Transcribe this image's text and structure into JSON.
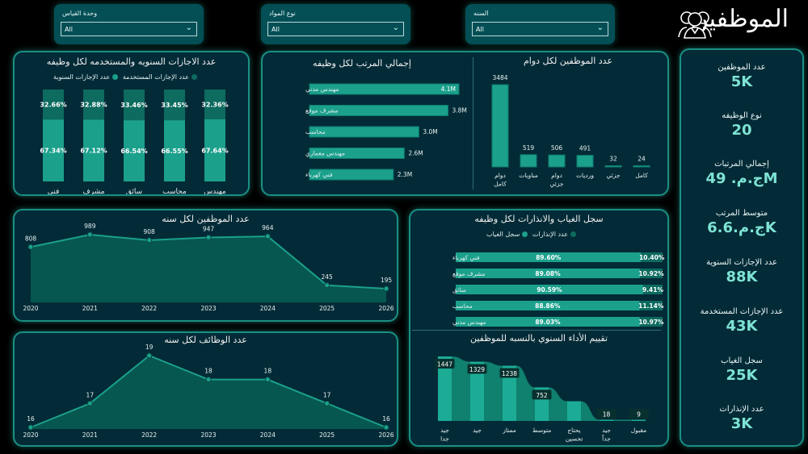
{
  "header": {
    "title": "الموظفين",
    "icon": "employees-icon"
  },
  "slicers": [
    {
      "label": "وحدة القياس",
      "value": "All"
    },
    {
      "label": "نوع المواد",
      "value": "All"
    },
    {
      "label": "السنه",
      "value": "All"
    }
  ],
  "kpis": [
    {
      "label": "عدد الموظفين",
      "value": "5K"
    },
    {
      "label": "نوع الوظيفه",
      "value": "20"
    },
    {
      "label": "إجمالي المرتبات",
      "value": "ج.م. 49M"
    },
    {
      "label": "متوسط المرتب",
      "value": "ج.م.6.6K"
    },
    {
      "label": "عدد الإجازات السنوية",
      "value": "88K"
    },
    {
      "label": "عدد الإجازات المستخدمة",
      "value": "43K"
    },
    {
      "label": "سجل الغياب",
      "value": "25K"
    },
    {
      "label": "عدد الإنذارات",
      "value": "3K"
    }
  ],
  "colors": {
    "accent": "#1ba08c",
    "dark_segment": "#0d6b5f",
    "panel_bg": "#032b37",
    "kpi_value": "#7ee3d4",
    "area_fill": "#06574f"
  },
  "chart_data": [
    {
      "id": "leave-by-job",
      "type": "bar",
      "stacked": "100%",
      "title": "عدد الاجازات السنويه والمستخدمه لكل وظيفه",
      "legend": [
        "عدد الإجازات المستخدمة",
        "عدد الإجازات السنوية"
      ],
      "legend_position": "top",
      "categories": [
        "فني كهرباء",
        "مشرف موقع",
        "سائق",
        "محاسب",
        "مهندس مدني"
      ],
      "series": [
        {
          "name": "عدد الإجازات المستخدمة",
          "values": [
            32.66,
            32.88,
            33.46,
            33.45,
            32.36
          ],
          "labels": [
            "32.66%",
            "32.88%",
            "33.46%",
            "33.45%",
            "32.36%"
          ]
        },
        {
          "name": "عدد الإجازات السنوية",
          "values": [
            67.34,
            67.12,
            66.54,
            66.55,
            67.64
          ],
          "labels": [
            "67.34%",
            "67.12%",
            "66.54%",
            "66.55%",
            "67.64%"
          ]
        }
      ]
    },
    {
      "id": "salary-by-job",
      "type": "bar",
      "orientation": "horizontal",
      "title": "إجمالي المرتب لكل وظيفه",
      "categories": [
        "مهندس مدني",
        "مشرف موقع",
        "محاسب",
        "مهندس معماري",
        "فني كهرباء"
      ],
      "values": [
        4.1,
        3.8,
        3.0,
        2.6,
        2.3
      ],
      "labels": [
        "4.1M",
        "3.8M",
        "3.0M",
        "2.6M",
        "2.3M"
      ],
      "unit": "M"
    },
    {
      "id": "employees-by-shift",
      "type": "bar",
      "title": "عدد الموظفين لكل دوام",
      "categories": [
        "دوام كامل",
        "مناوبات",
        "دوام جزئي",
        "ورديات",
        "جزئي",
        "كامل"
      ],
      "values": [
        3484,
        519,
        506,
        491,
        32,
        24
      ]
    },
    {
      "id": "employees-per-year",
      "type": "area",
      "title": "عدد الموظفين لكل سنه",
      "x": [
        "2020",
        "2021",
        "2022",
        "2023",
        "2024",
        "2025",
        "2026"
      ],
      "values": [
        808,
        989,
        908,
        947,
        964,
        245,
        195
      ]
    },
    {
      "id": "jobs-per-year",
      "type": "area",
      "title": "عدد الوظائف لكل سنه",
      "x": [
        "2020",
        "2021",
        "2022",
        "2023",
        "2024",
        "2025",
        "2026"
      ],
      "values": [
        16,
        17,
        19,
        18,
        18,
        17,
        16
      ]
    },
    {
      "id": "absence-warnings-by-job",
      "type": "bar",
      "orientation": "horizontal",
      "stacked": "100%",
      "title": "سجل الغياب والانذارات لكل وظيفه",
      "legend": [
        "عدد الإنذارات",
        "سجل الغياب"
      ],
      "legend_position": "top",
      "categories": [
        "فني كهرباء",
        "مشرف موقع",
        "سائق",
        "محاسب",
        "مهندس مدني"
      ],
      "series": [
        {
          "name": "سجل الغياب",
          "values": [
            89.6,
            89.08,
            90.59,
            88.86,
            89.03
          ],
          "labels": [
            "89.60%",
            "89.08%",
            "90.59%",
            "88.86%",
            "89.03%"
          ]
        },
        {
          "name": "عدد الإنذارات",
          "values": [
            10.4,
            10.92,
            9.41,
            11.14,
            10.97
          ],
          "labels": [
            "10.40%",
            "10.92%",
            "9.41%",
            "11.14%",
            "10.97%"
          ]
        }
      ]
    },
    {
      "id": "performance-rating",
      "type": "bar",
      "style": "ribbon",
      "title": "تقييم الأداء السنوي بالنسبه للموظفين",
      "categories": [
        "جيد جدا",
        "جيد",
        "ممتاز",
        "متوسط",
        "يحتاج تحسين",
        "جيد جداً",
        "مقبول"
      ],
      "values": [
        1447,
        1329,
        1238,
        752,
        440,
        18,
        9
      ],
      "labels": [
        "1447",
        "1329",
        "1238",
        "752",
        "",
        "18",
        "9"
      ]
    }
  ]
}
